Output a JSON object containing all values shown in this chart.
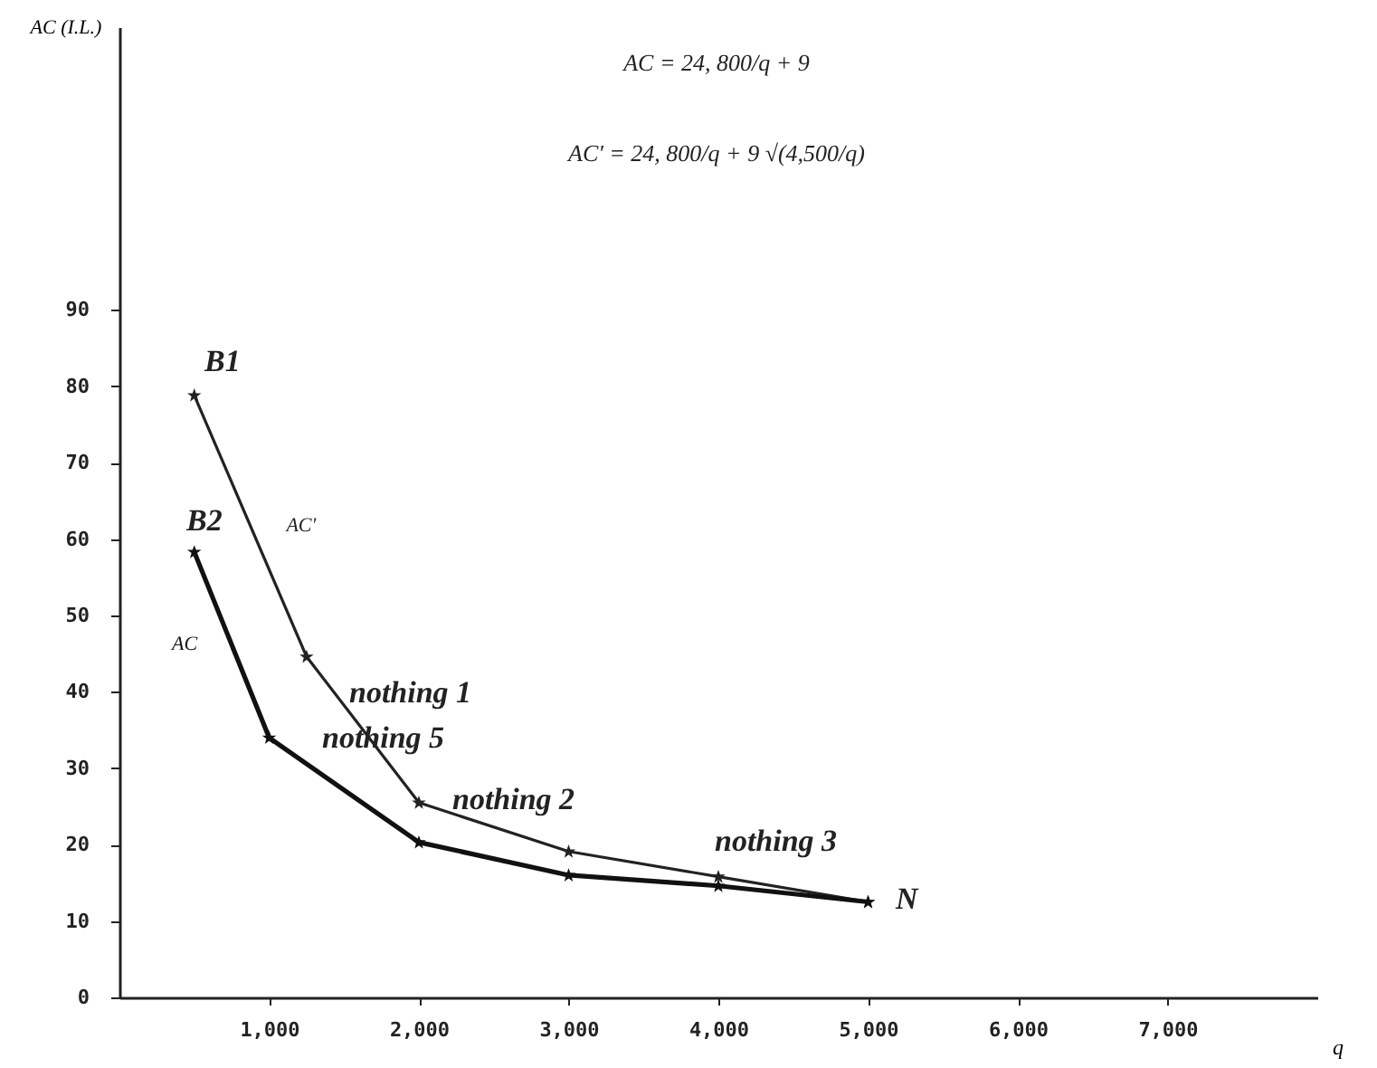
{
  "chart_data": {
    "type": "line",
    "xlabel": "q",
    "ylabel": "AC (I.L.)",
    "xlim": [
      0,
      8000
    ],
    "ylim": [
      0,
      127
    ],
    "xticks": [
      {
        "value": 1000,
        "label": "1,000"
      },
      {
        "value": 2000,
        "label": "2,000"
      },
      {
        "value": 3000,
        "label": "3,000"
      },
      {
        "value": 4000,
        "label": "4,000"
      },
      {
        "value": 5000,
        "label": "5,000"
      },
      {
        "value": 6000,
        "label": "6,000"
      },
      {
        "value": 7000,
        "label": "7,000"
      }
    ],
    "yticks": [
      0,
      10,
      20,
      30,
      40,
      50,
      60,
      70,
      80,
      90
    ],
    "grid": false,
    "marker": "star",
    "line_style": "solid",
    "series": [
      {
        "name": "AC'",
        "color": "#222222",
        "x": [
          500,
          1250,
          2000,
          3000,
          4000,
          5000
        ],
        "values": [
          78.8,
          44.6,
          25.5,
          19.1,
          15.8,
          12.5
        ]
      },
      {
        "name": "AC",
        "color": "#111111",
        "x": [
          500,
          1000,
          2000,
          3000,
          4000,
          5000
        ],
        "values": [
          58.3,
          34,
          20.3,
          16,
          14.6,
          12.5
        ]
      }
    ],
    "annotations": [
      "AC = 24, 800/q + 9",
      "AC' = 24, 800/q + 9 √(4,500/q)",
      "B1",
      "B2",
      "nothing 1",
      "nothing 5",
      "nothing 2",
      "nothing 3",
      "N"
    ]
  }
}
